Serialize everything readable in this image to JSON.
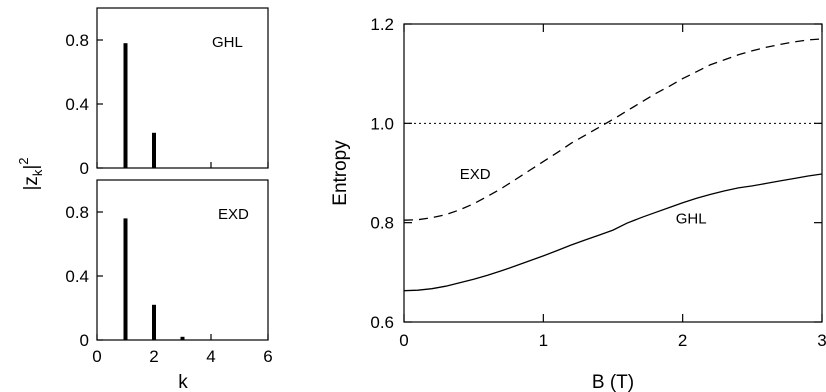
{
  "chart_data": [
    {
      "type": "bar",
      "panel": "top-left",
      "annotation": "GHL",
      "x_ticks": [
        "0",
        "2",
        "4",
        "6"
      ],
      "y_ticks": [
        "0",
        "0.4",
        "0.8"
      ],
      "ylabel_main": "|z",
      "ylabel_sub": "k",
      "ylabel_end": "|",
      "ylabel_sup": "2",
      "xlim": [
        0,
        6
      ],
      "ylim": [
        0,
        1.0
      ],
      "x": [
        1,
        2
      ],
      "values": [
        0.78,
        0.22
      ]
    },
    {
      "type": "bar",
      "panel": "bottom-left",
      "annotation": "EXD",
      "xlabel": "k",
      "x_ticks": [
        "0",
        "2",
        "4",
        "6"
      ],
      "y_ticks": [
        "0",
        "0.4",
        "0.8"
      ],
      "xlim": [
        0,
        6
      ],
      "ylim": [
        0,
        1.0
      ],
      "x": [
        1,
        2,
        3
      ],
      "values": [
        0.76,
        0.22,
        0.02
      ]
    },
    {
      "type": "line",
      "panel": "right",
      "xlabel": "B  (T)",
      "ylabel": "Entropy",
      "x_ticks": [
        "0",
        "1",
        "2",
        "3"
      ],
      "y_ticks": [
        "0.6",
        "0.8",
        "1.0",
        "1.2"
      ],
      "xlim": [
        0,
        3
      ],
      "ylim": [
        0.6,
        1.2
      ],
      "reference_line": {
        "y": 1.0,
        "style": "dotted"
      },
      "series": [
        {
          "name": "EXD",
          "style": "dashed",
          "x": [
            0,
            0.1,
            0.2,
            0.3,
            0.4,
            0.5,
            0.6,
            0.7,
            0.8,
            0.9,
            1.0,
            1.1,
            1.2,
            1.3,
            1.4,
            1.5,
            1.6,
            1.7,
            1.8,
            1.9,
            2.0,
            2.1,
            2.2,
            2.3,
            2.4,
            2.5,
            2.6,
            2.7,
            2.8,
            2.9,
            3.0
          ],
          "values": [
            0.805,
            0.806,
            0.81,
            0.816,
            0.826,
            0.838,
            0.853,
            0.869,
            0.887,
            0.905,
            0.923,
            0.941,
            0.96,
            0.976,
            0.992,
            1.008,
            1.025,
            1.042,
            1.059,
            1.074,
            1.09,
            1.104,
            1.118,
            1.128,
            1.138,
            1.146,
            1.153,
            1.159,
            1.164,
            1.168,
            1.17
          ]
        },
        {
          "name": "GHL",
          "style": "solid",
          "x": [
            0,
            0.1,
            0.2,
            0.3,
            0.4,
            0.5,
            0.6,
            0.7,
            0.8,
            0.9,
            1.0,
            1.1,
            1.2,
            1.3,
            1.4,
            1.5,
            1.6,
            1.7,
            1.8,
            1.9,
            2.0,
            2.1,
            2.2,
            2.3,
            2.4,
            2.5,
            2.6,
            2.7,
            2.8,
            2.9,
            3.0
          ],
          "values": [
            0.663,
            0.664,
            0.667,
            0.672,
            0.679,
            0.686,
            0.694,
            0.703,
            0.713,
            0.723,
            0.733,
            0.744,
            0.755,
            0.765,
            0.775,
            0.785,
            0.799,
            0.81,
            0.82,
            0.83,
            0.84,
            0.849,
            0.857,
            0.864,
            0.87,
            0.874,
            0.879,
            0.884,
            0.889,
            0.894,
            0.898
          ]
        }
      ],
      "series_labels": [
        {
          "text": "EXD",
          "x": 0.4,
          "y": 0.9
        },
        {
          "text": "GHL",
          "x": 1.95,
          "y": 0.81
        }
      ]
    }
  ]
}
